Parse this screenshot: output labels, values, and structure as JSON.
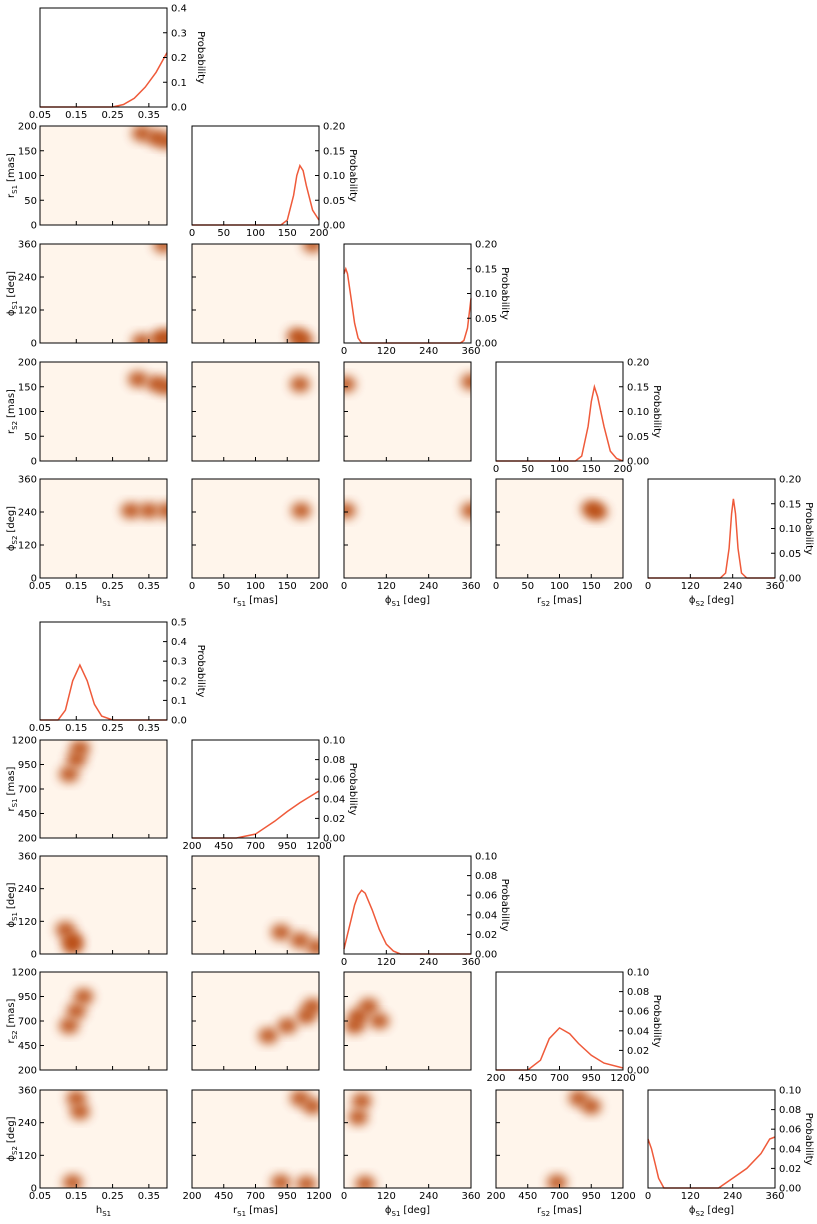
{
  "chart_data": [
    {
      "type": "corner",
      "variables": [
        {
          "symbol": "h",
          "subscript": "S1",
          "lim": [
            0.05,
            0.4
          ],
          "ticks": [
            0.05,
            0.15,
            0.25,
            0.35
          ]
        },
        {
          "symbol": "r",
          "subscript": "S1",
          "unit": "[mas]",
          "lim": [
            0,
            200
          ],
          "ticks": [
            0,
            50,
            100,
            150,
            200
          ]
        },
        {
          "symbol": "ϕ",
          "subscript": "S1",
          "unit": "[deg]",
          "lim": [
            0,
            360
          ],
          "ticks": [
            0,
            120,
            240,
            360
          ]
        },
        {
          "symbol": "r",
          "subscript": "S2",
          "unit": "[mas]",
          "lim": [
            0,
            200
          ],
          "ticks": [
            0,
            50,
            100,
            150,
            200
          ]
        },
        {
          "symbol": "ϕ",
          "subscript": "S2",
          "unit": "[deg]",
          "lim": [
            0,
            360
          ],
          "ticks": [
            0,
            120,
            240,
            360
          ]
        }
      ],
      "marginals": [
        {
          "ylabel": "Probability",
          "color": "#ef5a3a",
          "ylim": [
            0,
            0.4
          ],
          "yticks": [
            {
              "value": 0,
              "label": "0.0"
            },
            0.1,
            0.2,
            0.3,
            0.4
          ],
          "x": [
            0.05,
            0.25,
            0.28,
            0.31,
            0.34,
            0.37,
            0.4
          ],
          "values": [
            0,
            0,
            0.01,
            0.035,
            0.08,
            0.14,
            0.22
          ]
        },
        {
          "ylabel": "Probability",
          "color": "#ef5a3a",
          "ylim": [
            0,
            0.2
          ],
          "yticks": [
            {
              "value": 0,
              "label": "0.00"
            },
            0.05,
            {
              "value": 0.1,
              "label": "0.10"
            },
            0.15,
            {
              "value": 0.2,
              "label": "0.20"
            }
          ],
          "x": [
            0,
            140,
            150,
            160,
            165,
            170,
            175,
            180,
            190,
            200
          ],
          "values": [
            0,
            0,
            0.01,
            0.06,
            0.1,
            0.12,
            0.11,
            0.08,
            0.03,
            0.01
          ]
        },
        {
          "ylabel": "Probability",
          "color": "#ef5a3a",
          "ylim": [
            0,
            0.2
          ],
          "yticks": [
            {
              "value": 0,
              "label": "0.00"
            },
            0.05,
            {
              "value": 0.1,
              "label": "0.10"
            },
            0.15,
            {
              "value": 0.2,
              "label": "0.20"
            }
          ],
          "x": [
            0,
            5,
            10,
            20,
            30,
            40,
            50,
            330,
            340,
            350,
            360
          ],
          "values": [
            0.14,
            0.15,
            0.14,
            0.09,
            0.04,
            0.01,
            0,
            0,
            0.005,
            0.03,
            0.09
          ]
        },
        {
          "ylabel": "Probability",
          "color": "#ef5a3a",
          "ylim": [
            0,
            0.2
          ],
          "yticks": [
            {
              "value": 0,
              "label": "0.00"
            },
            0.05,
            {
              "value": 0.1,
              "label": "0.10"
            },
            0.15,
            {
              "value": 0.2,
              "label": "0.20"
            }
          ],
          "x": [
            0,
            125,
            135,
            145,
            150,
            155,
            160,
            170,
            180,
            190,
            200
          ],
          "values": [
            0,
            0,
            0.01,
            0.07,
            0.12,
            0.15,
            0.13,
            0.07,
            0.02,
            0.005,
            0
          ]
        },
        {
          "ylabel": "Probability",
          "color": "#ef5a3a",
          "ylim": [
            0,
            0.2
          ],
          "yticks": [
            {
              "value": 0,
              "label": "0.00"
            },
            0.05,
            {
              "value": 0.1,
              "label": "0.10"
            },
            0.15,
            {
              "value": 0.2,
              "label": "0.20"
            }
          ],
          "x": [
            0,
            205,
            220,
            230,
            237,
            242,
            248,
            255,
            265,
            280,
            360
          ],
          "values": [
            0,
            0,
            0.01,
            0.06,
            0.13,
            0.16,
            0.13,
            0.06,
            0.01,
            0,
            0
          ]
        }
      ],
      "densities": [
        {
          "x": [
            0.33,
            0.37,
            0.4
          ],
          "y": [
            185,
            176,
            170
          ]
        },
        {
          "x": [
            0.33,
            0.38,
            0.4,
            0.39
          ],
          "y": [
            5,
            15,
            20,
            357
          ]
        },
        {
          "x": [
            165,
            175,
            190
          ],
          "y": [
            25,
            10,
            358
          ]
        },
        {
          "x": [
            0.32,
            0.37,
            0.4
          ],
          "y": [
            165,
            156,
            150
          ]
        },
        {
          "x": [
            170
          ],
          "y": [
            155
          ]
        },
        {
          "x": [
            5,
            360
          ],
          "y": [
            155,
            160
          ]
        },
        {
          "x": [
            0.3,
            0.35,
            0.4
          ],
          "y": [
            245,
            245,
            245
          ]
        },
        {
          "x": [
            172
          ],
          "y": [
            245
          ]
        },
        {
          "x": [
            5,
            360
          ],
          "y": [
            245,
            245
          ]
        },
        {
          "x": [
            150,
            160
          ],
          "y": [
            252,
            240
          ]
        }
      ]
    },
    {
      "type": "corner",
      "variables": [
        {
          "symbol": "h",
          "subscript": "S1",
          "lim": [
            0.05,
            0.4
          ],
          "ticks": [
            0.05,
            0.15,
            0.25,
            0.35
          ]
        },
        {
          "symbol": "r",
          "subscript": "S1",
          "unit": "[mas]",
          "lim": [
            200,
            1200
          ],
          "ticks": [
            200,
            450,
            700,
            950,
            1200
          ]
        },
        {
          "symbol": "ϕ",
          "subscript": "S1",
          "unit": "[deg]",
          "lim": [
            0,
            360
          ],
          "ticks": [
            0,
            120,
            240,
            360
          ]
        },
        {
          "symbol": "r",
          "subscript": "S2",
          "unit": "[mas]",
          "lim": [
            200,
            1200
          ],
          "ticks": [
            200,
            450,
            700,
            950,
            1200
          ]
        },
        {
          "symbol": "ϕ",
          "subscript": "S2",
          "unit": "[deg]",
          "lim": [
            0,
            360
          ],
          "ticks": [
            0,
            120,
            240,
            360
          ]
        }
      ],
      "marginals": [
        {
          "ylabel": "Probability",
          "color": "#ef5a3a",
          "ylim": [
            0,
            0.5
          ],
          "yticks": [
            {
              "value": 0,
              "label": "0.0"
            },
            0.1,
            0.2,
            0.3,
            0.4,
            0.5
          ],
          "x": [
            0.05,
            0.1,
            0.12,
            0.14,
            0.16,
            0.18,
            0.2,
            0.22,
            0.25,
            0.4
          ],
          "values": [
            0,
            0,
            0.05,
            0.2,
            0.28,
            0.2,
            0.08,
            0.02,
            0,
            0
          ]
        },
        {
          "ylabel": "Probability",
          "color": "#ef5a3a",
          "ylim": [
            0,
            0.1
          ],
          "yticks": [
            {
              "value": 0,
              "label": "0.00"
            },
            0.02,
            0.04,
            0.06,
            0.08,
            {
              "value": 0.1,
              "label": "0.10"
            }
          ],
          "x": [
            200,
            550,
            700,
            850,
            950,
            1050,
            1200
          ],
          "values": [
            0,
            0,
            0.004,
            0.017,
            0.027,
            0.036,
            0.048
          ]
        },
        {
          "ylabel": "Probability",
          "color": "#ef5a3a",
          "ylim": [
            0,
            0.1
          ],
          "yticks": [
            {
              "value": 0,
              "label": "0.00"
            },
            0.02,
            0.04,
            0.06,
            0.08,
            {
              "value": 0.1,
              "label": "0.10"
            }
          ],
          "x": [
            0,
            10,
            20,
            30,
            40,
            50,
            60,
            80,
            100,
            120,
            140,
            160,
            360
          ],
          "values": [
            0.005,
            0.02,
            0.035,
            0.05,
            0.06,
            0.065,
            0.062,
            0.045,
            0.025,
            0.01,
            0.003,
            0,
            0
          ]
        },
        {
          "ylabel": "Probability",
          "color": "#ef5a3a",
          "ylim": [
            0,
            0.1
          ],
          "yticks": [
            {
              "value": 0,
              "label": "0.00"
            },
            0.02,
            0.04,
            0.06,
            0.08,
            {
              "value": 0.1,
              "label": "0.10"
            }
          ],
          "x": [
            200,
            450,
            550,
            620,
            700,
            780,
            850,
            950,
            1050,
            1200
          ],
          "values": [
            0,
            0,
            0.01,
            0.032,
            0.043,
            0.037,
            0.027,
            0.015,
            0.007,
            0.002
          ]
        },
        {
          "ylabel": "Probability",
          "color": "#ef5a3a",
          "ylim": [
            0,
            0.1
          ],
          "yticks": [
            {
              "value": 0,
              "label": "0.00"
            },
            0.02,
            0.04,
            0.06,
            0.08,
            {
              "value": 0.1,
              "label": "0.10"
            }
          ],
          "x": [
            0,
            10,
            20,
            30,
            45,
            200,
            240,
            280,
            320,
            345,
            360
          ],
          "values": [
            0.05,
            0.04,
            0.025,
            0.01,
            0,
            0,
            0.01,
            0.02,
            0.035,
            0.05,
            0.052
          ]
        }
      ],
      "densities": [
        {
          "x": [
            0.13,
            0.15,
            0.16
          ],
          "y": [
            850,
            1000,
            1120
          ]
        },
        {
          "x": [
            0.14,
            0.12,
            0.14
          ],
          "y": [
            50,
            90,
            30
          ]
        },
        {
          "x": [
            900,
            1050,
            1180
          ],
          "y": [
            80,
            50,
            25
          ]
        },
        {
          "x": [
            0.13,
            0.15,
            0.17
          ],
          "y": [
            650,
            800,
            950
          ]
        },
        {
          "x": [
            800,
            950,
            1100,
            1150
          ],
          "y": [
            550,
            650,
            750,
            850
          ]
        },
        {
          "x": [
            30,
            40,
            70,
            100
          ],
          "y": [
            650,
            750,
            850,
            700
          ]
        },
        {
          "x": [
            0.15,
            0.16,
            0.14
          ],
          "y": [
            330,
            280,
            20
          ]
        },
        {
          "x": [
            1050,
            1150,
            900,
            1100
          ],
          "y": [
            330,
            300,
            20,
            15
          ]
        },
        {
          "x": [
            50,
            40,
            60
          ],
          "y": [
            320,
            260,
            15
          ]
        },
        {
          "x": [
            850,
            950,
            680
          ],
          "y": [
            330,
            300,
            20
          ]
        }
      ]
    }
  ]
}
